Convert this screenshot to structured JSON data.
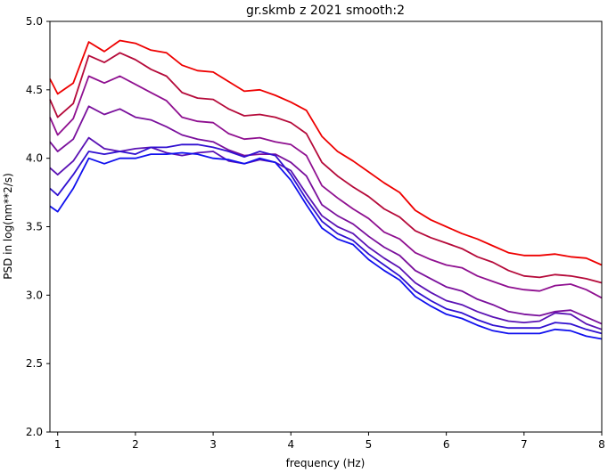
{
  "chart_data": {
    "type": "line",
    "title": "gr.skmb z 2021 smooth:2",
    "xlabel": "frequency (Hz)",
    "ylabel": "PSD in log(nm**2/s)",
    "xlim": [
      0.9,
      8.0
    ],
    "ylim": [
      2.0,
      5.0
    ],
    "xticks": [
      1,
      2,
      3,
      4,
      5,
      6,
      7,
      8
    ],
    "xtick_labels": [
      "1",
      "2",
      "3",
      "4",
      "5",
      "6",
      "7",
      "8"
    ],
    "yticks": [
      2.0,
      2.5,
      3.0,
      3.5,
      4.0,
      4.5,
      5.0
    ],
    "ytick_labels": [
      "2.0",
      "2.5",
      "3.0",
      "3.5",
      "4.0",
      "4.5",
      "5.0"
    ],
    "grid": false,
    "x": [
      0.9,
      1.0,
      1.2,
      1.4,
      1.6,
      1.8,
      2.0,
      2.2,
      2.4,
      2.6,
      2.8,
      3.0,
      3.2,
      3.4,
      3.6,
      3.8,
      4.0,
      4.2,
      4.4,
      4.6,
      4.8,
      5.0,
      5.2,
      5.4,
      5.6,
      5.8,
      6.0,
      6.2,
      6.4,
      6.6,
      6.8,
      7.0,
      7.2,
      7.4,
      7.6,
      7.8,
      8.0
    ],
    "series": [
      {
        "color": "#ee0000",
        "values": [
          4.58,
          4.47,
          4.55,
          4.85,
          4.78,
          4.86,
          4.84,
          4.79,
          4.77,
          4.68,
          4.64,
          4.63,
          4.56,
          4.49,
          4.5,
          4.46,
          4.41,
          4.35,
          4.16,
          4.05,
          3.98,
          3.9,
          3.82,
          3.75,
          3.62,
          3.55,
          3.5,
          3.45,
          3.41,
          3.36,
          3.31,
          3.29,
          3.29,
          3.3,
          3.28,
          3.27,
          3.22
        ]
      },
      {
        "color": "#b50a3a",
        "values": [
          4.43,
          4.3,
          4.4,
          4.75,
          4.7,
          4.77,
          4.72,
          4.65,
          4.6,
          4.48,
          4.44,
          4.43,
          4.36,
          4.31,
          4.32,
          4.3,
          4.26,
          4.18,
          3.97,
          3.87,
          3.79,
          3.72,
          3.63,
          3.57,
          3.47,
          3.42,
          3.38,
          3.34,
          3.28,
          3.24,
          3.18,
          3.14,
          3.13,
          3.15,
          3.14,
          3.12,
          3.09
        ]
      },
      {
        "color": "#8f1090",
        "values": [
          4.3,
          4.17,
          4.29,
          4.6,
          4.55,
          4.6,
          4.54,
          4.48,
          4.42,
          4.3,
          4.27,
          4.26,
          4.18,
          4.14,
          4.15,
          4.12,
          4.1,
          4.02,
          3.8,
          3.71,
          3.63,
          3.56,
          3.46,
          3.41,
          3.31,
          3.26,
          3.22,
          3.2,
          3.14,
          3.1,
          3.06,
          3.04,
          3.03,
          3.07,
          3.08,
          3.04,
          2.98
        ]
      },
      {
        "color": "#7a109c",
        "values": [
          4.12,
          4.05,
          4.14,
          4.38,
          4.32,
          4.36,
          4.3,
          4.28,
          4.23,
          4.17,
          4.14,
          4.12,
          4.06,
          4.02,
          4.03,
          4.03,
          3.97,
          3.87,
          3.66,
          3.58,
          3.52,
          3.43,
          3.35,
          3.29,
          3.18,
          3.12,
          3.06,
          3.03,
          2.97,
          2.93,
          2.88,
          2.86,
          2.85,
          2.88,
          2.89,
          2.84,
          2.79
        ]
      },
      {
        "color": "#5a12b4",
        "values": [
          3.93,
          3.88,
          3.98,
          4.15,
          4.07,
          4.05,
          4.07,
          4.08,
          4.04,
          4.02,
          4.04,
          4.05,
          3.98,
          3.96,
          3.99,
          3.97,
          3.91,
          3.74,
          3.58,
          3.5,
          3.45,
          3.35,
          3.27,
          3.2,
          3.09,
          3.02,
          2.96,
          2.93,
          2.88,
          2.84,
          2.81,
          2.8,
          2.81,
          2.87,
          2.86,
          2.79,
          2.75
        ]
      },
      {
        "color": "#3010d0",
        "values": [
          3.78,
          3.73,
          3.88,
          4.05,
          4.03,
          4.05,
          4.03,
          4.08,
          4.08,
          4.1,
          4.1,
          4.08,
          4.05,
          4.01,
          4.05,
          4.02,
          3.88,
          3.7,
          3.54,
          3.45,
          3.4,
          3.3,
          3.22,
          3.14,
          3.03,
          2.96,
          2.9,
          2.87,
          2.82,
          2.78,
          2.76,
          2.76,
          2.76,
          2.8,
          2.79,
          2.75,
          2.72
        ]
      },
      {
        "color": "#1010ee",
        "values": [
          3.65,
          3.61,
          3.78,
          4.0,
          3.96,
          4.0,
          4.0,
          4.03,
          4.03,
          4.04,
          4.03,
          4.0,
          3.99,
          3.96,
          4.0,
          3.97,
          3.84,
          3.66,
          3.49,
          3.41,
          3.37,
          3.26,
          3.18,
          3.11,
          2.99,
          2.92,
          2.86,
          2.83,
          2.78,
          2.74,
          2.72,
          2.72,
          2.72,
          2.75,
          2.74,
          2.7,
          2.68
        ]
      }
    ]
  }
}
